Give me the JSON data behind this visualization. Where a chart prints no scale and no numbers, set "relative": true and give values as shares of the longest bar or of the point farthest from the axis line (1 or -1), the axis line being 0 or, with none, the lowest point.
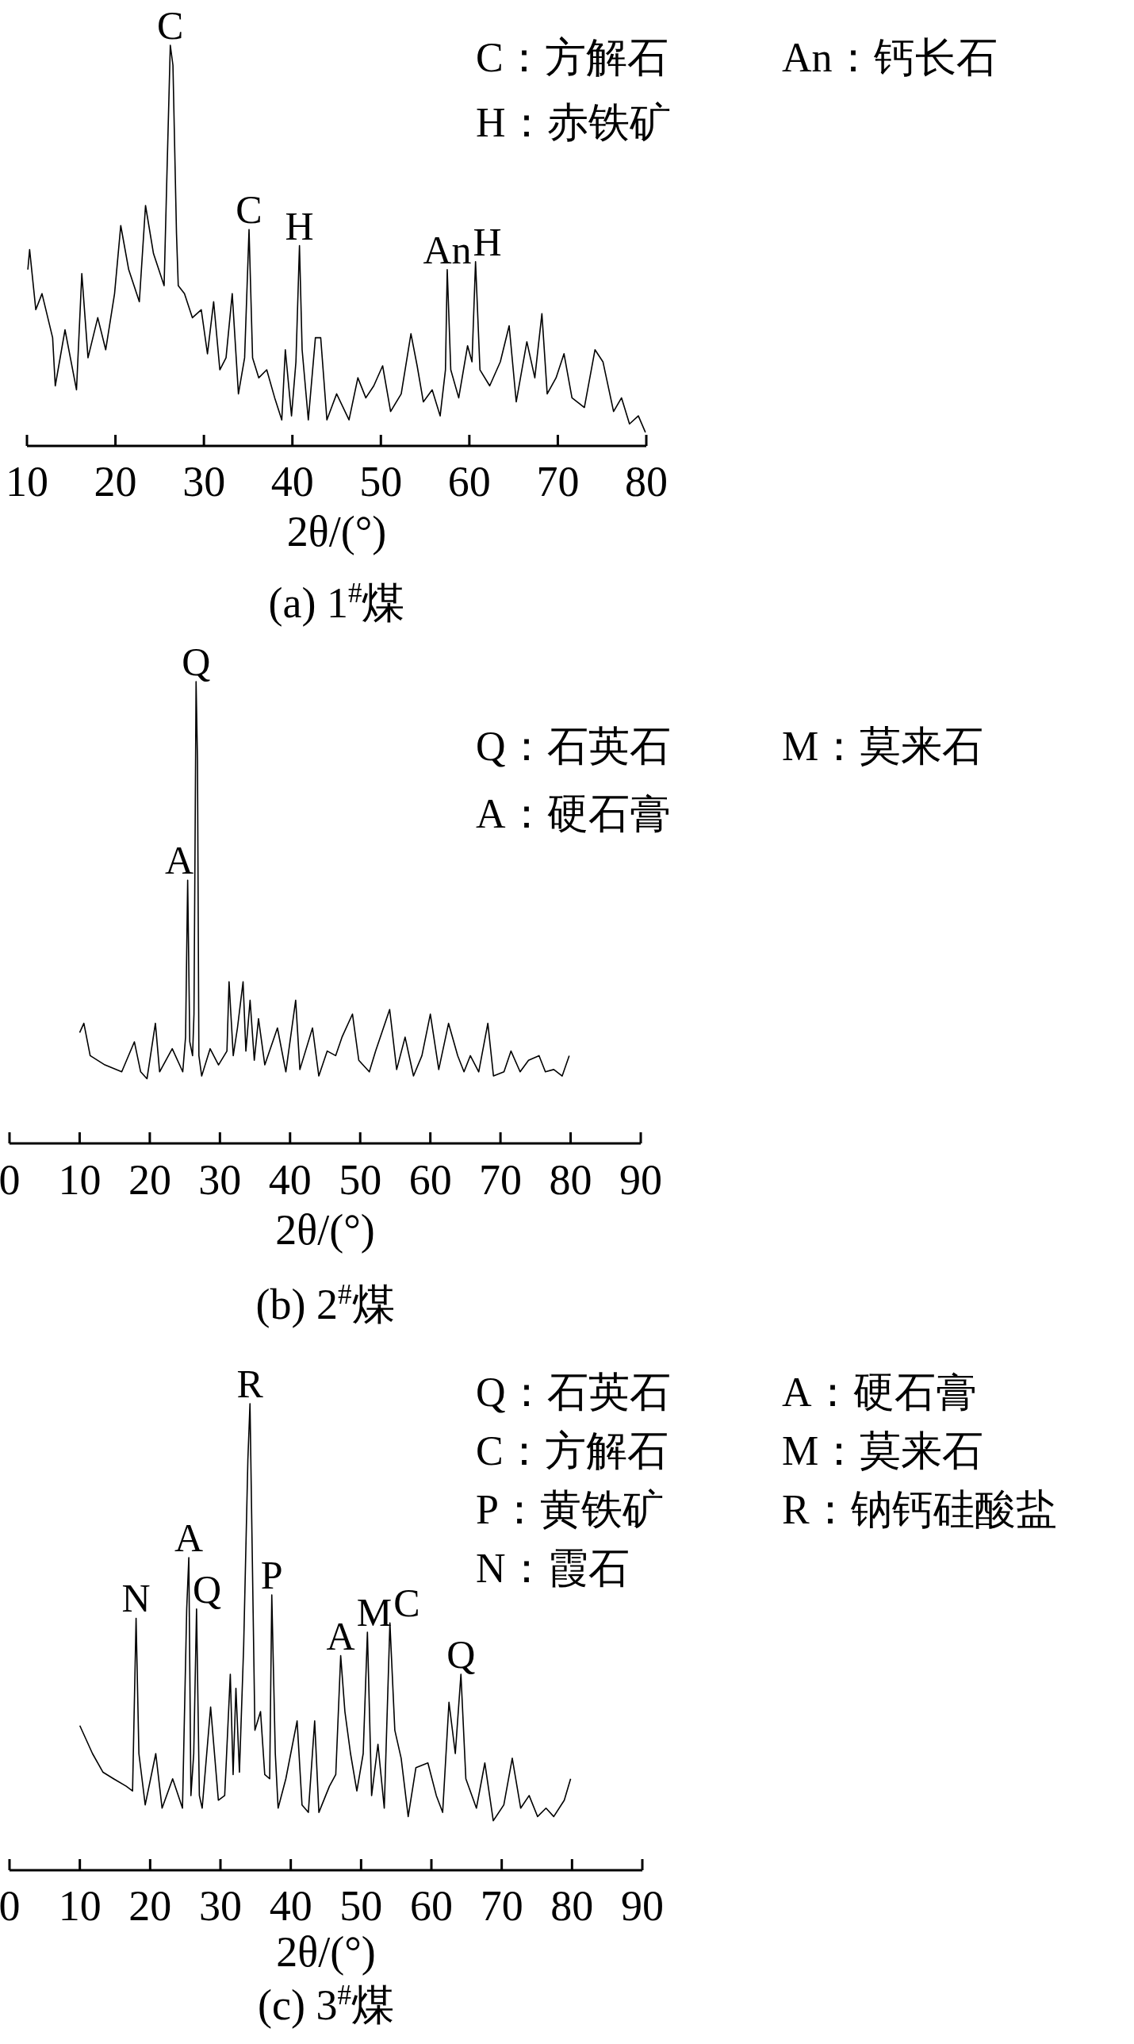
{
  "chart_data": [
    {
      "type": "line",
      "relative": true,
      "title": "(a) 1$^{#}$煤",
      "xlabel": "2θ/(°)",
      "xlim": [
        10,
        80
      ],
      "xticks": [
        10,
        20,
        30,
        40,
        50,
        60,
        70,
        80
      ],
      "x": [
        10.1,
        10.3,
        11.0,
        11.7,
        12.9,
        13.2,
        14.3,
        15.6,
        16.2,
        16.9,
        18.0,
        18.9,
        19.9,
        20.6,
        21.5,
        22.7,
        23.4,
        24.3,
        25.5,
        25.8,
        26.2,
        26.5,
        26.9,
        27.1,
        27.8,
        28.7,
        29.7,
        30.4,
        31.1,
        31.8,
        32.5,
        33.2,
        33.9,
        34.6,
        35.1,
        35.5,
        36.2,
        37.1,
        38.0,
        38.8,
        39.2,
        39.9,
        40.4,
        40.8,
        41.1,
        41.8,
        42.6,
        43.2,
        43.9,
        45.0,
        46.4,
        47.4,
        48.3,
        49.2,
        50.2,
        51.1,
        52.3,
        53.4,
        54.1,
        54.8,
        55.8,
        56.7,
        57.3,
        57.5,
        57.9,
        58.8,
        59.8,
        60.3,
        60.7,
        61.2,
        62.3,
        63.5,
        64.5,
        65.3,
        66.5,
        67.4,
        68.2,
        68.8,
        69.8,
        70.7,
        71.6,
        73.0,
        74.2,
        75.1,
        76.3,
        77.2,
        78.1,
        79.1,
        79.9
      ],
      "series": [
        {
          "color": "#000000",
          "values": [
            0.44,
            0.49,
            0.34,
            0.38,
            0.27,
            0.15,
            0.29,
            0.14,
            0.43,
            0.22,
            0.32,
            0.24,
            0.38,
            0.55,
            0.44,
            0.36,
            0.6,
            0.48,
            0.4,
            0.66,
            1.0,
            0.95,
            0.53,
            0.4,
            0.38,
            0.32,
            0.34,
            0.23,
            0.36,
            0.19,
            0.22,
            0.38,
            0.13,
            0.22,
            0.54,
            0.22,
            0.17,
            0.19,
            0.12,
            0.065,
            0.24,
            0.075,
            0.21,
            0.5,
            0.24,
            0.065,
            0.27,
            0.27,
            0.065,
            0.13,
            0.065,
            0.17,
            0.12,
            0.15,
            0.2,
            0.086,
            0.13,
            0.28,
            0.2,
            0.11,
            0.14,
            0.075,
            0.19,
            0.44,
            0.19,
            0.12,
            0.25,
            0.21,
            0.46,
            0.19,
            0.15,
            0.21,
            0.3,
            0.11,
            0.26,
            0.17,
            0.33,
            0.13,
            0.17,
            0.23,
            0.12,
            0.096,
            0.24,
            0.21,
            0.086,
            0.12,
            0.055,
            0.075,
            0.034
          ]
        }
      ],
      "annotations": [
        {
          "text": "C",
          "x": 26.2,
          "y": 1.0
        },
        {
          "text": "C",
          "x": 35.1,
          "y": 0.54
        },
        {
          "text": "H",
          "x": 40.8,
          "y": 0.5
        },
        {
          "text": "An",
          "x": 57.5,
          "y": 0.44
        },
        {
          "text": "H",
          "x": 60.7,
          "y": 0.46
        },
        "C：方解石",
        "An：钙长石",
        "H：赤铁矿"
      ]
    },
    {
      "type": "line",
      "relative": true,
      "title": "(b) 2$^{#}$煤",
      "xlabel": "2θ/(°)",
      "xlim": [
        0,
        90
      ],
      "xticks": [
        0,
        10,
        20,
        30,
        40,
        50,
        60,
        70,
        80,
        90
      ],
      "x": [
        10.0,
        10.6,
        11.5,
        13.6,
        16.0,
        17.8,
        18.7,
        19.6,
        20.8,
        21.4,
        23.2,
        24.7,
        25.1,
        25.4,
        25.7,
        26.1,
        26.3,
        26.6,
        26.8,
        27.0,
        27.4,
        28.6,
        29.8,
        31.0,
        31.3,
        31.9,
        32.5,
        33.3,
        33.7,
        34.3,
        34.9,
        35.5,
        36.4,
        38.2,
        39.4,
        40.8,
        41.4,
        43.2,
        44.1,
        45.3,
        46.5,
        47.4,
        48.9,
        49.8,
        51.3,
        52.2,
        54.2,
        55.2,
        56.4,
        57.6,
        58.8,
        60.0,
        61.2,
        62.6,
        63.9,
        64.8,
        65.7,
        66.9,
        68.2,
        69.0,
        70.5,
        71.5,
        72.8,
        74.0,
        75.5,
        76.4,
        77.6,
        78.8,
        79.8
      ],
      "series": [
        {
          "color": "#000000",
          "values": [
            0.24,
            0.26,
            0.19,
            0.17,
            0.155,
            0.22,
            0.155,
            0.14,
            0.26,
            0.155,
            0.205,
            0.155,
            0.23,
            0.57,
            0.22,
            0.19,
            0.28,
            1.0,
            0.83,
            0.19,
            0.146,
            0.205,
            0.17,
            0.2,
            0.35,
            0.19,
            0.25,
            0.35,
            0.2,
            0.31,
            0.18,
            0.27,
            0.17,
            0.25,
            0.155,
            0.31,
            0.16,
            0.25,
            0.146,
            0.2,
            0.19,
            0.23,
            0.28,
            0.18,
            0.155,
            0.2,
            0.29,
            0.16,
            0.23,
            0.146,
            0.19,
            0.28,
            0.16,
            0.26,
            0.19,
            0.155,
            0.19,
            0.155,
            0.26,
            0.146,
            0.155,
            0.2,
            0.155,
            0.18,
            0.19,
            0.155,
            0.16,
            0.146,
            0.19
          ]
        }
      ],
      "annotations": [
        {
          "text": "A",
          "x": 25.4,
          "y": 0.57
        },
        {
          "text": "Q",
          "x": 26.6,
          "y": 1.0
        },
        "Q：石英石",
        "M：莫来石",
        "A：硬石膏"
      ]
    },
    {
      "type": "line",
      "relative": true,
      "title": "(c) 3$^{#}$煤",
      "xlabel": "2θ/(°)",
      "xlim": [
        0,
        90
      ],
      "xticks": [
        0,
        10,
        20,
        30,
        40,
        50,
        60,
        70,
        80,
        90
      ],
      "x": [
        10.0,
        10.6,
        11.8,
        13.3,
        14.8,
        16.6,
        17.5,
        18.0,
        18.4,
        19.3,
        20.8,
        21.7,
        23.2,
        24.6,
        25.2,
        25.5,
        25.8,
        26.2,
        26.6,
        27.0,
        27.4,
        28.6,
        29.7,
        30.6,
        31.4,
        31.8,
        32.2,
        32.7,
        33.3,
        33.9,
        34.2,
        34.5,
        34.9,
        35.7,
        36.3,
        37.0,
        37.3,
        37.8,
        38.2,
        39.3,
        40.9,
        41.6,
        42.5,
        43.4,
        44.0,
        45.5,
        46.4,
        47.1,
        47.7,
        48.5,
        49.4,
        50.3,
        50.9,
        51.5,
        52.4,
        53.3,
        54.1,
        54.8,
        55.7,
        56.7,
        57.8,
        59.5,
        60.7,
        61.6,
        62.5,
        63.4,
        64.2,
        64.9,
        66.4,
        67.6,
        68.8,
        70.3,
        71.5,
        72.7,
        73.9,
        75.1,
        76.3,
        77.4,
        78.9,
        79.8
      ],
      "series": [
        {
          "color": "#000000",
          "values": [
            0.31,
            0.29,
            0.25,
            0.21,
            0.196,
            0.18,
            0.17,
            0.54,
            0.25,
            0.14,
            0.25,
            0.133,
            0.196,
            0.133,
            0.56,
            0.67,
            0.16,
            0.25,
            0.56,
            0.16,
            0.133,
            0.35,
            0.15,
            0.16,
            0.42,
            0.205,
            0.39,
            0.21,
            0.48,
            0.88,
            1.0,
            0.7,
            0.3,
            0.34,
            0.205,
            0.196,
            0.59,
            0.25,
            0.133,
            0.196,
            0.32,
            0.14,
            0.124,
            0.32,
            0.124,
            0.18,
            0.205,
            0.46,
            0.34,
            0.25,
            0.17,
            0.25,
            0.51,
            0.16,
            0.27,
            0.133,
            0.53,
            0.3,
            0.24,
            0.115,
            0.22,
            0.23,
            0.16,
            0.124,
            0.36,
            0.25,
            0.42,
            0.196,
            0.133,
            0.23,
            0.106,
            0.14,
            0.24,
            0.133,
            0.16,
            0.115,
            0.133,
            0.115,
            0.15,
            0.196
          ]
        }
      ],
      "annotations": [
        {
          "text": "N",
          "x": 18.0,
          "y": 0.54
        },
        {
          "text": "A",
          "x": 25.5,
          "y": 0.67
        },
        {
          "text": "Q",
          "x": 26.6,
          "y": 0.56
        },
        {
          "text": "R",
          "x": 34.2,
          "y": 1.0
        },
        {
          "text": "P",
          "x": 37.3,
          "y": 0.59
        },
        {
          "text": "A",
          "x": 47.1,
          "y": 0.46
        },
        {
          "text": "M",
          "x": 50.9,
          "y": 0.51
        },
        {
          "text": "C",
          "x": 54.1,
          "y": 0.53
        },
        {
          "text": "Q",
          "x": 64.2,
          "y": 0.42
        },
        "Q：石英石",
        "A：硬石膏",
        "C：方解石",
        "M：莫来石",
        "P：黄铁矿",
        "R：钠钙硅酸盐",
        "N：霞石"
      ]
    }
  ]
}
